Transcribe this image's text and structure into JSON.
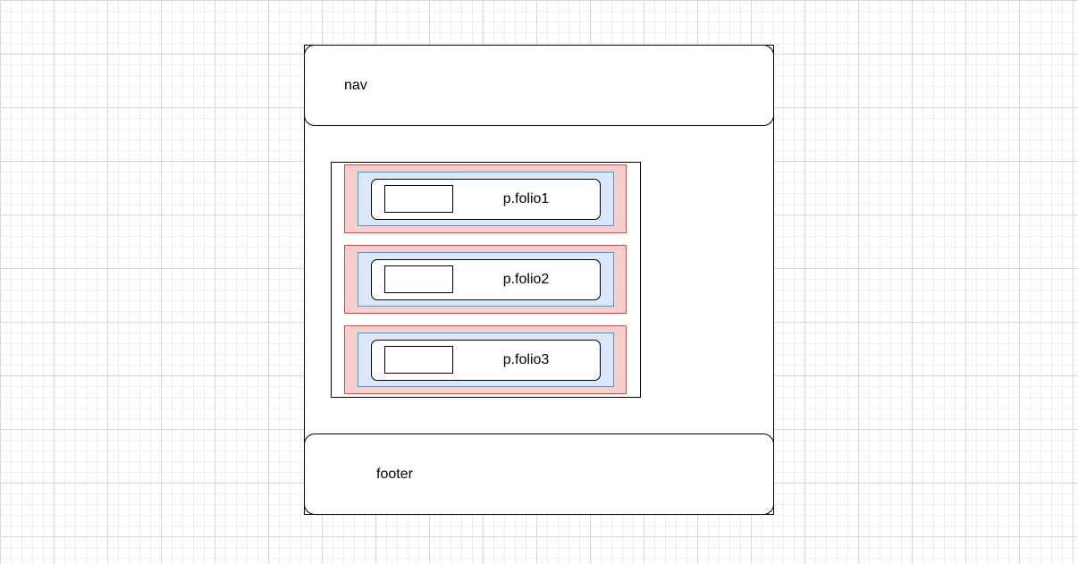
{
  "nav": {
    "label": "nav"
  },
  "footer": {
    "label": "footer"
  },
  "portfolio": {
    "items": [
      {
        "label": "p.folio1"
      },
      {
        "label": "p.folio2"
      },
      {
        "label": "p.folio3"
      }
    ]
  },
  "colors": {
    "outer_fill": "#f8cecc",
    "outer_stroke": "#b85450",
    "mid_fill": "#dae8fc",
    "mid_stroke": "#6c8ebf",
    "stroke": "#000000",
    "grid": "#d7d7d7"
  }
}
